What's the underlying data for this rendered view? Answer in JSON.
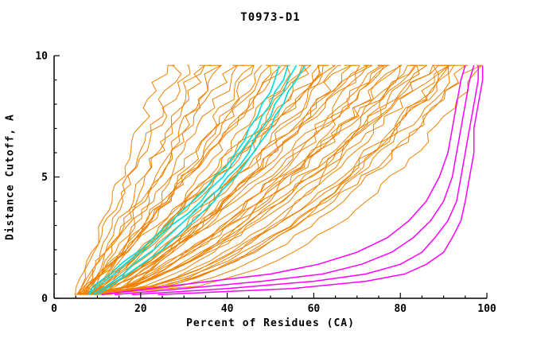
{
  "chart_data": {
    "type": "line",
    "title": "T0973-D1",
    "xlabel": "Percent of Residues (CA)",
    "ylabel": "Distance Cutoff, A",
    "xlim": [
      0,
      100
    ],
    "ylim": [
      0,
      10
    ],
    "x_ticks": [
      0,
      20,
      40,
      60,
      80,
      100
    ],
    "y_ticks": [
      0,
      5,
      10
    ],
    "x_minor_step": 5,
    "y_minor_step": 1,
    "grid": false,
    "legend_position": "none",
    "colors": {
      "ensemble": "#f08000",
      "cyan": "#00e0e0",
      "magenta": "#ff00ff",
      "axis": "#000000"
    },
    "ensemble_orange": {
      "count": 55,
      "y_range": [
        0.15,
        9.6
      ],
      "curves": [
        [
          6,
          26,
          1.15
        ],
        [
          7,
          29,
          1.05
        ],
        [
          5,
          31,
          1.1
        ],
        [
          8,
          33,
          0.95
        ],
        [
          6,
          35,
          1.0
        ],
        [
          9,
          37,
          0.9
        ],
        [
          7,
          39,
          1.05
        ],
        [
          5,
          41,
          0.95
        ],
        [
          8,
          43,
          1.0
        ],
        [
          6,
          45,
          0.85
        ],
        [
          9,
          47,
          0.95
        ],
        [
          7,
          49,
          0.9
        ],
        [
          10,
          51,
          0.85
        ],
        [
          6,
          53,
          0.95
        ],
        [
          8,
          55,
          0.8
        ],
        [
          11,
          57,
          0.9
        ],
        [
          7,
          59,
          0.85
        ],
        [
          9,
          61,
          0.75
        ],
        [
          6,
          63,
          0.85
        ],
        [
          10,
          65,
          0.8
        ],
        [
          8,
          67,
          0.7
        ],
        [
          12,
          69,
          0.8
        ],
        [
          7,
          71,
          0.75
        ],
        [
          9,
          73,
          0.65
        ],
        [
          11,
          75,
          0.7
        ],
        [
          6,
          77,
          0.75
        ],
        [
          8,
          79,
          0.6
        ],
        [
          10,
          81,
          0.7
        ],
        [
          7,
          83,
          0.6
        ],
        [
          12,
          85,
          0.65
        ],
        [
          9,
          87,
          0.55
        ],
        [
          6,
          89,
          0.6
        ],
        [
          11,
          91,
          0.5
        ],
        [
          8,
          93,
          0.55
        ],
        [
          10,
          95,
          0.45
        ],
        [
          7,
          97,
          0.5
        ],
        [
          9,
          99,
          0.4
        ],
        [
          13,
          72,
          0.9
        ],
        [
          5,
          66,
          1.0
        ],
        [
          14,
          58,
          0.75
        ],
        [
          6,
          84,
          0.8
        ],
        [
          9,
          76,
          0.85
        ],
        [
          12,
          92,
          0.6
        ],
        [
          5,
          88,
          0.7
        ],
        [
          8,
          62,
          0.9
        ],
        [
          10,
          70,
          0.95
        ],
        [
          7,
          54,
          1.05
        ],
        [
          13,
          80,
          0.75
        ],
        [
          6,
          94,
          0.5
        ],
        [
          9,
          86,
          0.65
        ],
        [
          11,
          64,
          0.7
        ],
        [
          5,
          48,
          0.8
        ],
        [
          8,
          74,
          0.55
        ],
        [
          12,
          82,
          0.5
        ],
        [
          7,
          90,
          0.45
        ]
      ]
    },
    "series_cyan": [
      {
        "points": [
          [
            8,
            0.15
          ],
          [
            10,
            0.5
          ],
          [
            14,
            1
          ],
          [
            17,
            1.5
          ],
          [
            21,
            2
          ],
          [
            24,
            2.5
          ],
          [
            27,
            3
          ],
          [
            31,
            3.5
          ],
          [
            34,
            4
          ],
          [
            36,
            4.5
          ],
          [
            39,
            5
          ],
          [
            41,
            5.5
          ],
          [
            43,
            6
          ],
          [
            45,
            6.5
          ],
          [
            47,
            7
          ],
          [
            48,
            7.5
          ],
          [
            50,
            8
          ],
          [
            51,
            8.5
          ],
          [
            53,
            9
          ],
          [
            54,
            9.6
          ]
        ]
      },
      {
        "points": [
          [
            9,
            0.15
          ],
          [
            12,
            0.5
          ],
          [
            16,
            1
          ],
          [
            19,
            1.5
          ],
          [
            23,
            2
          ],
          [
            26,
            2.5
          ],
          [
            29,
            3
          ],
          [
            32,
            3.5
          ],
          [
            35,
            4
          ],
          [
            38,
            4.5
          ],
          [
            40,
            5
          ],
          [
            43,
            5.5
          ],
          [
            45,
            6
          ],
          [
            46,
            6.5
          ],
          [
            48,
            7
          ],
          [
            50,
            7.5
          ],
          [
            51,
            8
          ],
          [
            53,
            8.5
          ],
          [
            54,
            9
          ],
          [
            56,
            9.6
          ]
        ]
      },
      {
        "points": [
          [
            10,
            0.15
          ],
          [
            13,
            0.5
          ],
          [
            17,
            1
          ],
          [
            21,
            1.5
          ],
          [
            25,
            2
          ],
          [
            28,
            2.5
          ],
          [
            31,
            3
          ],
          [
            34,
            3.5
          ],
          [
            37,
            4
          ],
          [
            39,
            4.5
          ],
          [
            42,
            5
          ],
          [
            44,
            5.5
          ],
          [
            46,
            6
          ],
          [
            48,
            6.5
          ],
          [
            50,
            7
          ],
          [
            51,
            7.5
          ],
          [
            53,
            8
          ],
          [
            54,
            8.5
          ],
          [
            56,
            9
          ],
          [
            58,
            9.6
          ]
        ]
      },
      {
        "points": [
          [
            8,
            0.15
          ],
          [
            9,
            0.5
          ],
          [
            13,
            1
          ],
          [
            16,
            1.5
          ],
          [
            20,
            2
          ],
          [
            23,
            2.5
          ],
          [
            26,
            3
          ],
          [
            29,
            3.5
          ],
          [
            32,
            4
          ],
          [
            35,
            4.5
          ],
          [
            37,
            5
          ],
          [
            40,
            5.5
          ],
          [
            42,
            6
          ],
          [
            44,
            6.5
          ],
          [
            45,
            7
          ],
          [
            47,
            7.5
          ],
          [
            48,
            8
          ],
          [
            50,
            8.5
          ],
          [
            51,
            9
          ],
          [
            52,
            9.6
          ]
        ]
      }
    ],
    "series_magenta": [
      {
        "points": [
          [
            18,
            0.15
          ],
          [
            40,
            0.4
          ],
          [
            60,
            0.7
          ],
          [
            72,
            1
          ],
          [
            80,
            1.4
          ],
          [
            85,
            1.9
          ],
          [
            88,
            2.5
          ],
          [
            91,
            3.2
          ],
          [
            93,
            4
          ],
          [
            94,
            5
          ],
          [
            95,
            6
          ],
          [
            96,
            7
          ],
          [
            97,
            8
          ],
          [
            98,
            9
          ],
          [
            98,
            9.6
          ]
        ]
      },
      {
        "points": [
          [
            14,
            0.15
          ],
          [
            30,
            0.4
          ],
          [
            48,
            0.7
          ],
          [
            62,
            1
          ],
          [
            71,
            1.4
          ],
          [
            78,
            1.9
          ],
          [
            83,
            2.5
          ],
          [
            87,
            3.2
          ],
          [
            90,
            4
          ],
          [
            92,
            5
          ],
          [
            93,
            6
          ],
          [
            94,
            7
          ],
          [
            95,
            8
          ],
          [
            96,
            9
          ],
          [
            97,
            9.6
          ]
        ]
      },
      {
        "points": [
          [
            11,
            0.15
          ],
          [
            22,
            0.4
          ],
          [
            36,
            0.7
          ],
          [
            50,
            1
          ],
          [
            61,
            1.4
          ],
          [
            70,
            1.9
          ],
          [
            77,
            2.5
          ],
          [
            82,
            3.2
          ],
          [
            86,
            4
          ],
          [
            89,
            5
          ],
          [
            91,
            6
          ],
          [
            92,
            7
          ],
          [
            93,
            8
          ],
          [
            94,
            9
          ],
          [
            95,
            9.6
          ]
        ]
      },
      {
        "points": [
          [
            24,
            0.15
          ],
          [
            55,
            0.4
          ],
          [
            72,
            0.7
          ],
          [
            81,
            1
          ],
          [
            86,
            1.4
          ],
          [
            90,
            1.9
          ],
          [
            92,
            2.5
          ],
          [
            94,
            3.2
          ],
          [
            95,
            4
          ],
          [
            96,
            5
          ],
          [
            97,
            6
          ],
          [
            97,
            7
          ],
          [
            98,
            8
          ],
          [
            99,
            9
          ],
          [
            99,
            9.6
          ]
        ]
      }
    ]
  }
}
